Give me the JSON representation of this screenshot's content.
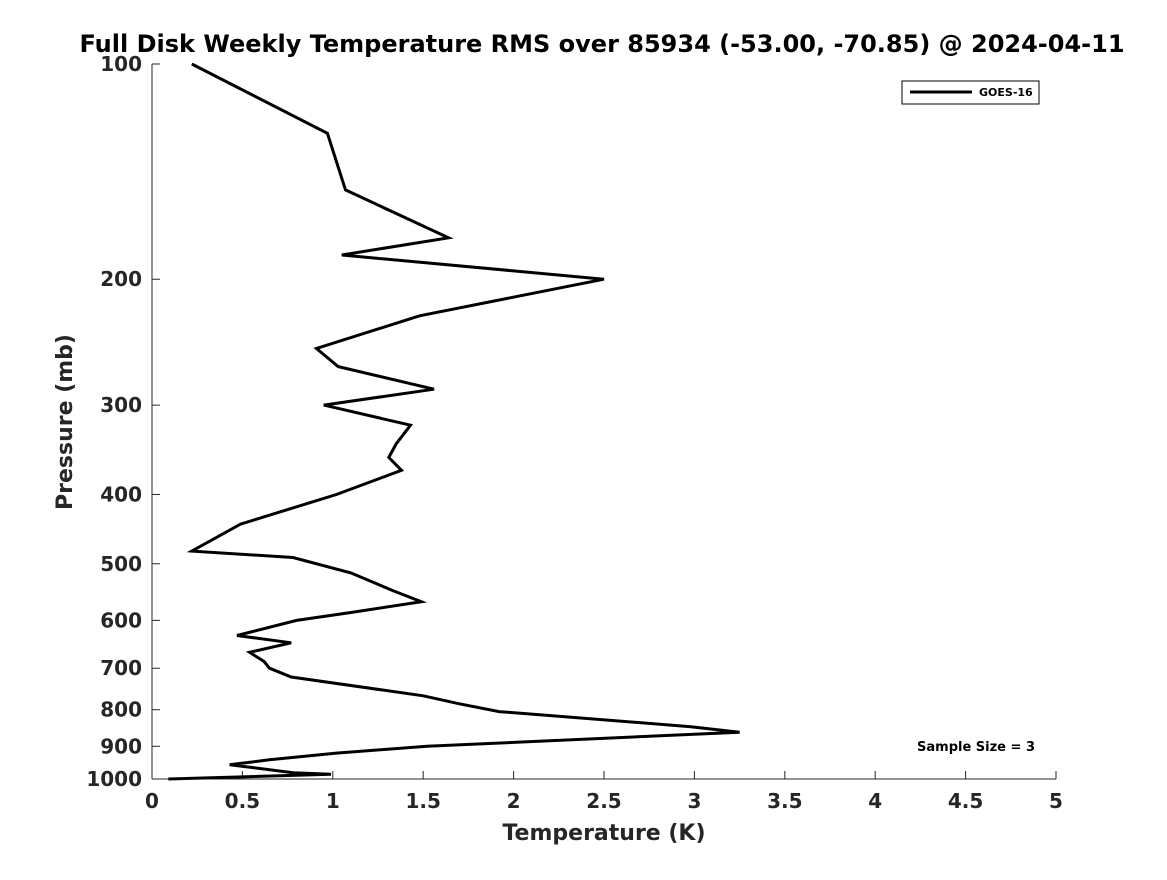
{
  "chart_data": {
    "type": "line",
    "title": "Full Disk Weekly Temperature RMS over 85934 (-53.00, -70.85) @ 2024-04-11",
    "xlabel": "Temperature (K)",
    "ylabel": "Pressure (mb)",
    "xlim": [
      0,
      5
    ],
    "ylim": [
      100,
      1000
    ],
    "y_scale": "log",
    "y_reversed": true,
    "x_ticks": [
      "0",
      "0.5",
      "1",
      "1.5",
      "2",
      "2.5",
      "3",
      "3.5",
      "4",
      "4.5",
      "5"
    ],
    "y_ticks": [
      "100",
      "200",
      "300",
      "400",
      "500",
      "600",
      "700",
      "800",
      "900",
      "1000"
    ],
    "grid": false,
    "legend": {
      "position": "top-right",
      "entries": [
        "GOES-16"
      ]
    },
    "annotation": "Sample Size = 3",
    "series": [
      {
        "name": "GOES-16",
        "color": "#000000",
        "x": [
          0.22,
          0.97,
          1.07,
          1.64,
          1.05,
          2.5,
          1.48,
          0.91,
          1.03,
          1.56,
          0.95,
          1.43,
          1.35,
          1.31,
          1.38,
          1.02,
          0.49,
          0.22,
          0.78,
          1.1,
          1.33,
          1.49,
          1.1,
          0.8,
          0.47,
          0.77,
          0.54,
          0.62,
          0.65,
          0.77,
          1.5,
          1.7,
          1.92,
          2.98,
          3.25,
          1.52,
          1.02,
          0.65,
          0.43,
          0.78,
          0.99,
          0.09
        ],
        "y": [
          100,
          125,
          150,
          175,
          185,
          200,
          225,
          250,
          265,
          285,
          300,
          320,
          340,
          355,
          370,
          400,
          440,
          480,
          490,
          515,
          545,
          565,
          585,
          600,
          630,
          645,
          665,
          685,
          700,
          720,
          765,
          785,
          805,
          845,
          860,
          900,
          920,
          940,
          955,
          980,
          985,
          1000
        ]
      }
    ]
  }
}
